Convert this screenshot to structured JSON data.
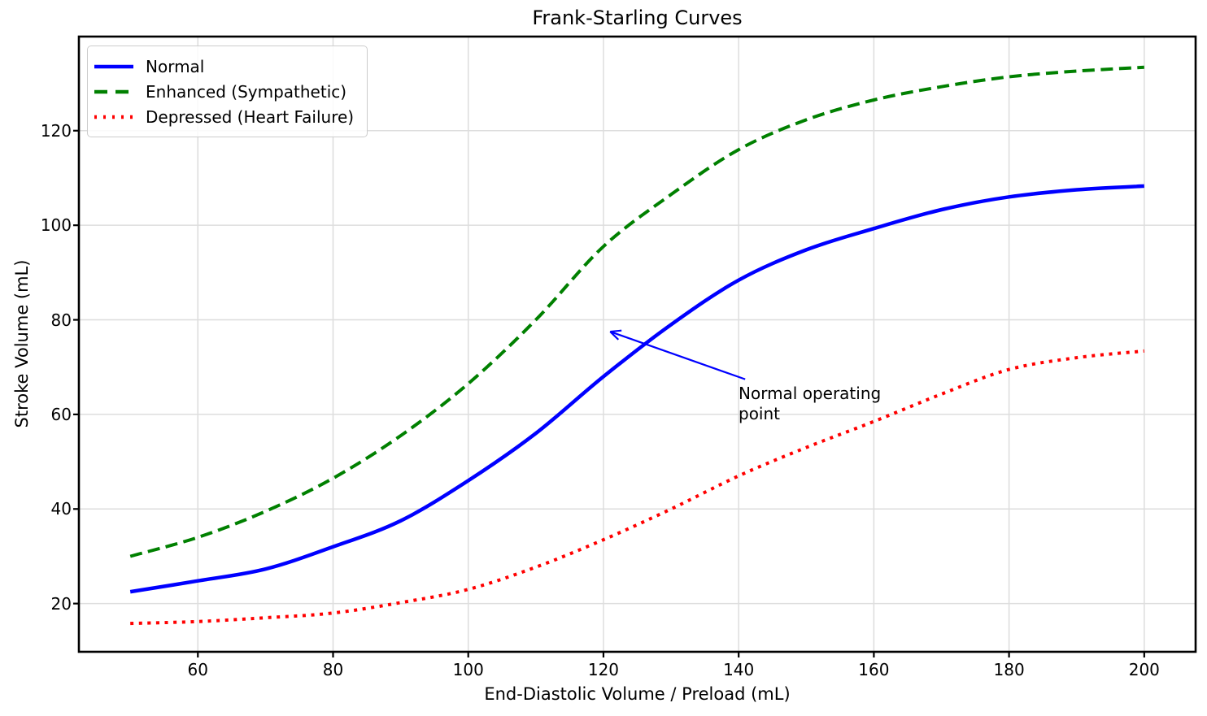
{
  "chart_data": {
    "type": "line",
    "title": "Frank-Starling Curves",
    "xlabel": "End-Diastolic Volume / Preload (mL)",
    "ylabel": "Stroke Volume (mL)",
    "xlim": [
      42.4,
      207.6
    ],
    "ylim": [
      9.8,
      139.9
    ],
    "x_ticks": [
      60,
      80,
      100,
      120,
      140,
      160,
      180,
      200
    ],
    "y_ticks": [
      20,
      40,
      60,
      80,
      100,
      120
    ],
    "grid": true,
    "grid_color": "#dddddd",
    "axis_color": "#000000",
    "legend_position": "upper-left",
    "x": [
      50,
      60,
      70,
      80,
      90,
      100,
      110,
      120,
      130,
      140,
      150,
      160,
      170,
      180,
      190,
      200
    ],
    "series": [
      {
        "name": "Normal",
        "color": "#0000ff",
        "style": "solid",
        "values": [
          22.5,
          24.8,
          27.3,
          32,
          37.5,
          46,
          56,
          68,
          79,
          88.4,
          94.8,
          99.3,
          103.3,
          106,
          107.5,
          108.3
        ]
      },
      {
        "name": "Enhanced (Sympathetic)",
        "color": "#008000",
        "style": "dashed",
        "values": [
          30,
          34,
          39.5,
          46.5,
          55.5,
          66.5,
          80,
          95.5,
          106.5,
          116,
          122.3,
          126.5,
          129.3,
          131.4,
          132.6,
          133.4
        ]
      },
      {
        "name": "Depressed (Heart Failure)",
        "color": "#ff0000",
        "style": "dotted",
        "values": [
          15.8,
          16.2,
          17,
          18,
          20.2,
          23,
          27.7,
          33.5,
          40,
          47,
          53,
          58.5,
          64.3,
          69.5,
          72,
          73.4
        ]
      }
    ],
    "annotation": {
      "text": "Normal operating\npoint",
      "color": "#000000",
      "arrow_color": "#0000ff",
      "xy": [
        121,
        77.5
      ],
      "xytext": [
        140,
        64
      ]
    }
  }
}
